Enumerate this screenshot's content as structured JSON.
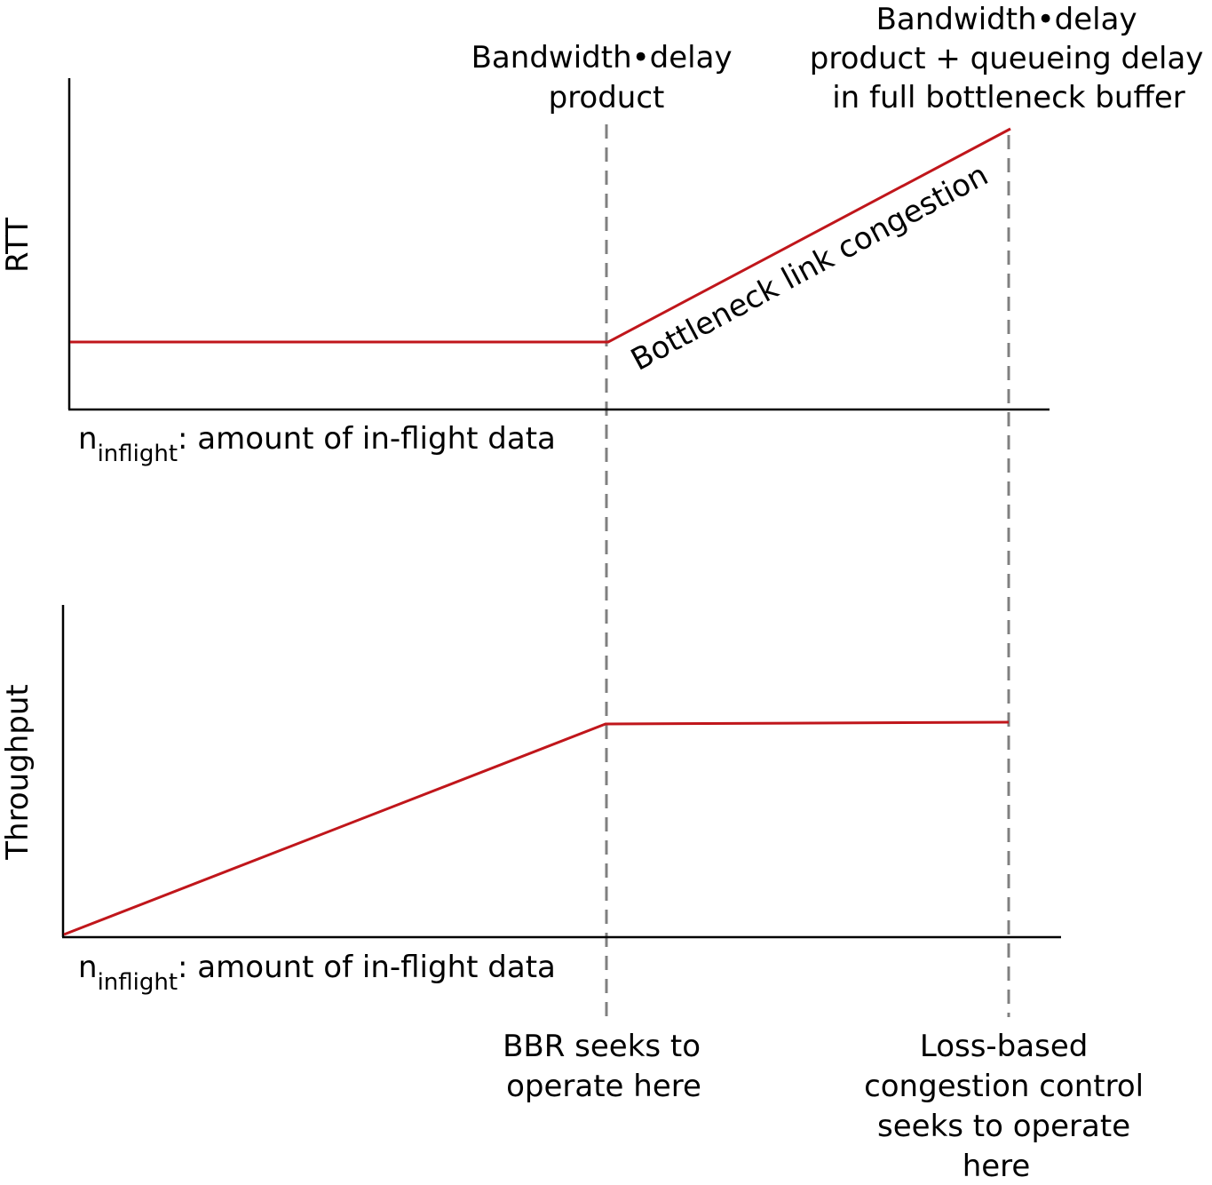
{
  "top_panel": {
    "y_label": "RTT",
    "x_label_main": "n",
    "x_label_sub": "inflight",
    "x_label_rest": ": amount of in-flight data",
    "curve_annotation": "Bottleneck link congestion"
  },
  "bottom_panel": {
    "y_label": "Throughput",
    "x_label_main": "n",
    "x_label_sub": "inflight",
    "x_label_rest": ": amount of in-flight data"
  },
  "markers": {
    "bdp": {
      "top_lines": [
        "Bandwidth•delay",
        "product"
      ],
      "bottom_lines": [
        "BBR seeks to",
        "operate here"
      ]
    },
    "buffer_full": {
      "top_lines": [
        "Bandwidth•delay",
        "product + queueing delay",
        "in full bottleneck buffer"
      ],
      "bottom_lines": [
        "Loss-based",
        "congestion control",
        "seeks to operate",
        "here"
      ]
    }
  },
  "colors": {
    "curve": "#c0161b",
    "marker_line": "#808080",
    "axis": "#000000"
  }
}
